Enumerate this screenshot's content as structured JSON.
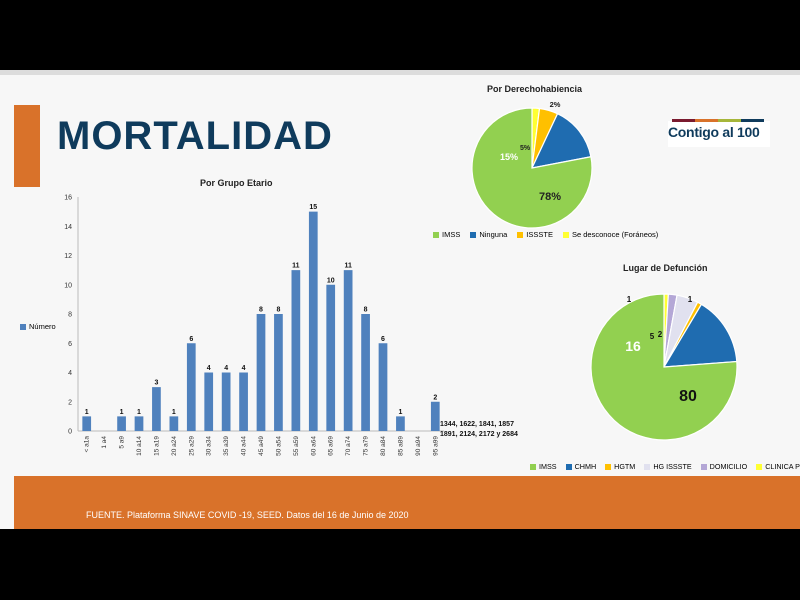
{
  "slide": {
    "title": "MORTALIDAD",
    "logo_text": "Contigo al 100",
    "footer_text": "FUENTE. Plataforma SINAVE COVID -19, SEED. Datos del 16 de Junio de 2020",
    "colors": {
      "title": "#0f3b5c",
      "accent": "#d9722a",
      "footer": "#d9722a",
      "bar": "#4f81bd"
    },
    "logo_colors": [
      "#7a1a2e",
      "#d9722a",
      "#a6b63a",
      "#0f3b5c"
    ]
  },
  "chart_data": [
    {
      "type": "bar",
      "title": "Por Grupo Etario",
      "legend": [
        "Número"
      ],
      "legend_position": "left",
      "categories": [
        "< a1a",
        "1 a4",
        "5 a9",
        "10 a14",
        "15 a19",
        "20 a24",
        "25 a29",
        "30 a34",
        "35 a39",
        "40 a44",
        "45 a49",
        "50 a54",
        "55 a59",
        "60 a64",
        "65 a69",
        "70 a74",
        "75 a79",
        "80 a84",
        "85 a89",
        "90 a94",
        "95 a99"
      ],
      "values": [
        1,
        0,
        1,
        1,
        3,
        1,
        6,
        4,
        4,
        4,
        8,
        8,
        11,
        15,
        10,
        11,
        8,
        6,
        1,
        0,
        2
      ],
      "labels": [
        "1",
        "",
        "1",
        "1",
        "3",
        "1",
        "6",
        "4",
        "4",
        "4",
        "8",
        "8",
        "11",
        "15",
        "10",
        "11",
        "8",
        "6",
        "1",
        "",
        "2"
      ],
      "ylim": [
        0,
        16
      ],
      "yticks": [
        0,
        2,
        4,
        6,
        8,
        10,
        12,
        14,
        16
      ],
      "grid": false,
      "note": [
        "1344, 1622, 1841, 1857",
        "1891, 2124, 2172 y 2684"
      ]
    },
    {
      "type": "pie",
      "title": "Por Derechohabiencia",
      "categories": [
        "IMSS",
        "Ninguna",
        "ISSSTE",
        "Se desconoce (Foráneos)"
      ],
      "values": [
        78,
        15,
        5,
        2
      ],
      "labels": [
        "78%",
        "15%",
        "5%",
        "2%"
      ],
      "colors": [
        "#92d050",
        "#1f6cb0",
        "#ffc000",
        "#ffff33"
      ],
      "legend_position": "bottom"
    },
    {
      "type": "pie",
      "title": "Lugar de Defunción",
      "categories": [
        "IMSS",
        "CHMH",
        "HGTM",
        "HG ISSSTE",
        "DOMICILIO",
        "CLINICA PRIVADA"
      ],
      "values": [
        80,
        16,
        1,
        5,
        2,
        1
      ],
      "labels": [
        "80",
        "16",
        "1",
        "5",
        "2",
        "1"
      ],
      "colors": [
        "#92d050",
        "#1f6cb0",
        "#ffc000",
        "#e1e1ef",
        "#b4a7d6",
        "#ffff33"
      ],
      "legend_position": "bottom"
    }
  ]
}
